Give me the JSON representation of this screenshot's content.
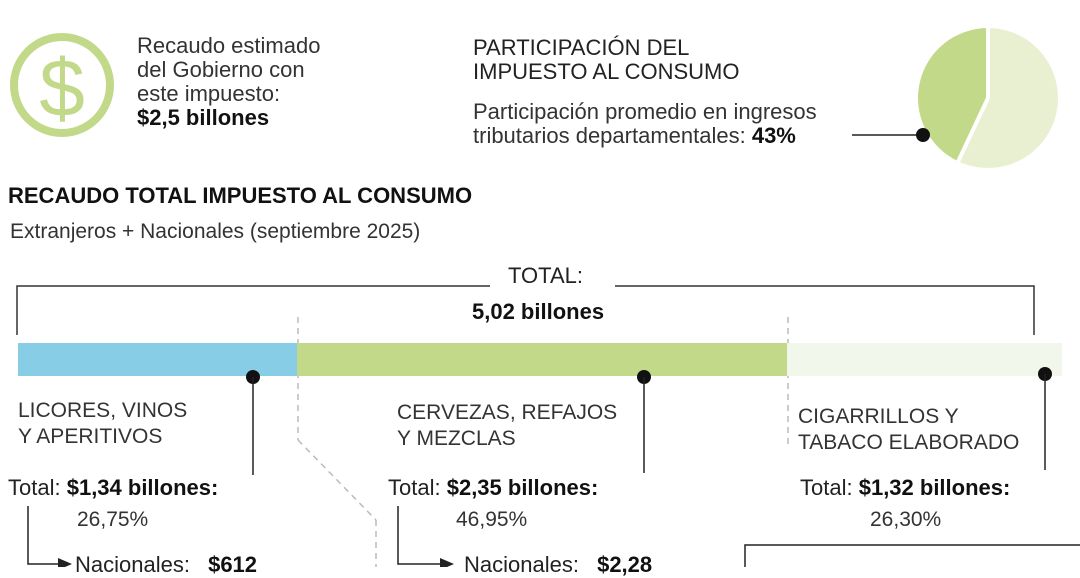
{
  "colors": {
    "green_accent": "#c3d98a",
    "green_light": "#e9f0d2",
    "blue": "#87cde6",
    "tobacco": "#f1f7ea"
  },
  "icons": {
    "dollar": "dollar-circle-icon"
  },
  "estimate": {
    "line1": "Recaudo estimado",
    "line2": "del Gobierno con",
    "line3": "este impuesto:",
    "value": "$2,5 billones"
  },
  "participation": {
    "title_line1": "PARTICIPACIÓN DEL",
    "title_line2": "IMPUESTO AL CONSUMO",
    "text_line1": "Participación promedio en ingresos",
    "text_line2": "tributarios departamentales: ",
    "value": "43%",
    "share": 0.43
  },
  "section": {
    "title": "RECAUDO TOTAL IMPUESTO AL CONSUMO",
    "subtitle": "Extranjeros + Nacionales (septiembre 2025)"
  },
  "total": {
    "label": "TOTAL:",
    "value": "5,02 billones"
  },
  "categories": [
    {
      "name_line1": "LICORES, VINOS",
      "name_line2": "Y APERITIVOS",
      "total_label": "Total:",
      "total_value": "$1,34 billones:",
      "percent": "26,75%",
      "share": 26.75,
      "sub_label": "Nacionales:",
      "sub_value": "$612"
    },
    {
      "name_line1": "CERVEZAS, REFAJOS",
      "name_line2": "Y MEZCLAS",
      "total_label": "Total:",
      "total_value": "$2,35 billones:",
      "percent": "46,95%",
      "share": 46.95,
      "sub_label": "Nacionales:",
      "sub_value": "$2,28"
    },
    {
      "name_line1": "CIGARRILLOS Y",
      "name_line2": "TABACO ELABORADO",
      "total_label": "Total:",
      "total_value": "$1,32 billones:",
      "percent": "26,30%",
      "share": 26.3
    }
  ]
}
